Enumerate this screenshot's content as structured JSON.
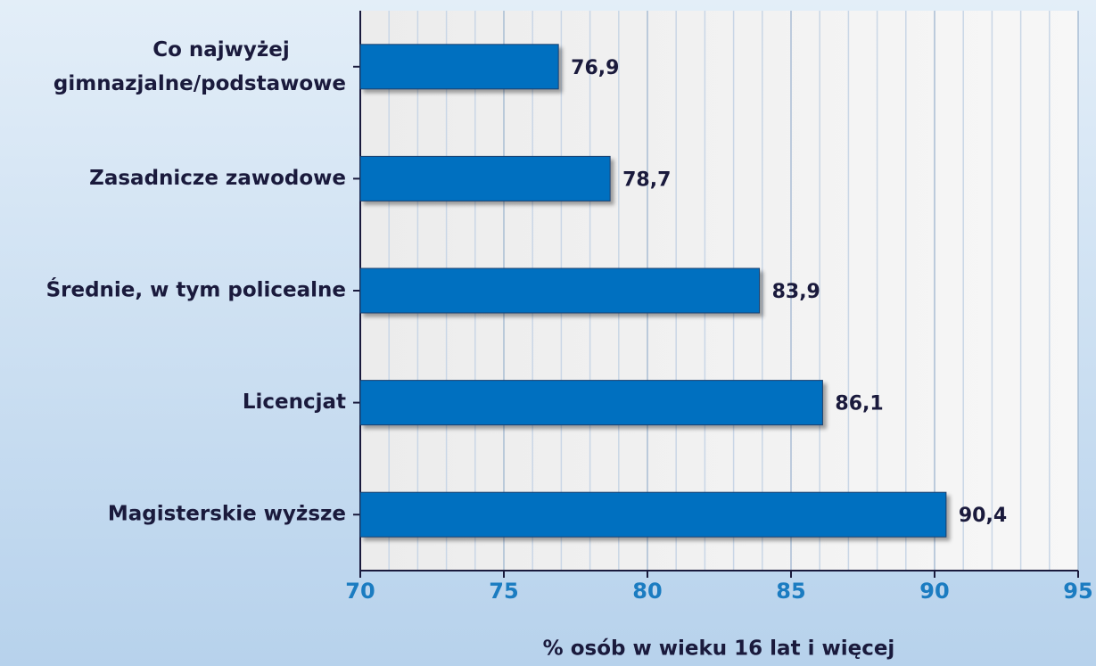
{
  "chart_data": {
    "type": "bar",
    "orientation": "horizontal",
    "categories": [
      "Co najwyżej\ngimnazjalne/podstawowe",
      "Zasadnicze zawodowe",
      "Średnie, w tym policealne",
      "Licencjat",
      "Magisterskie wyższe"
    ],
    "values": [
      76.9,
      78.7,
      83.9,
      86.1,
      90.4
    ],
    "value_labels": [
      "76,9",
      "78,7",
      "83,9",
      "86,1",
      "90,4"
    ],
    "color": "#0070c0",
    "xlabel": "% osób w wieku 16 lat i więcej",
    "xlim": [
      70,
      95
    ],
    "xticks": [
      70,
      75,
      80,
      85,
      90,
      95
    ],
    "xminorticks": [
      71,
      72,
      73,
      74,
      76,
      77,
      78,
      79,
      81,
      82,
      83,
      84,
      86,
      87,
      88,
      89,
      91,
      92,
      93,
      94
    ],
    "grid": true
  }
}
